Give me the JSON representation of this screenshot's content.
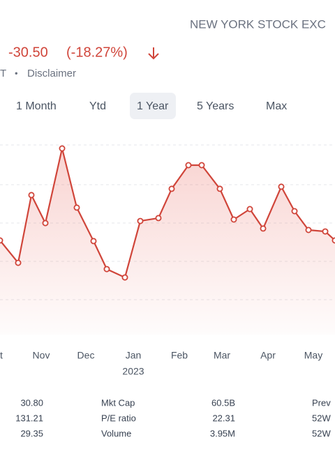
{
  "header": {
    "exchange": "NEW YORK STOCK EXC",
    "change": "-30.50",
    "change_percent": "(-18.27%)",
    "time_fragment": "T",
    "separator": "•",
    "disclaimer": "Disclaimer"
  },
  "tabs": [
    "1 Month",
    "Ytd",
    "1 Year",
    "5 Years",
    "Max"
  ],
  "selected_tab": "1 Year",
  "chart_data": {
    "type": "line",
    "color": "#d0453a",
    "x": [
      0,
      26,
      45,
      65,
      89,
      110,
      134,
      153,
      179,
      201,
      227,
      246,
      270,
      289,
      315,
      335,
      358,
      377,
      403,
      422,
      442,
      466,
      480
    ],
    "values": [
      45,
      34.3,
      66.7,
      53.3,
      89,
      60.7,
      44.7,
      31.3,
      27.3,
      54.3,
      55.7,
      69.7,
      81,
      81,
      69.7,
      55,
      60,
      50.7,
      70.7,
      59,
      50,
      49.3,
      45
    ],
    "xlim": [
      0,
      480
    ],
    "ylim": [
      0,
      100
    ],
    "xticks": [
      {
        "value": 2,
        "label": "t"
      },
      {
        "value": 59,
        "label": "Nov"
      },
      {
        "value": 123,
        "label": "Dec"
      },
      {
        "value": 191,
        "label": "Jan"
      },
      {
        "value": 257,
        "label": "Feb"
      },
      {
        "value": 318,
        "label": "Mar"
      },
      {
        "value": 384,
        "label": "Apr"
      },
      {
        "value": 449,
        "label": "May"
      }
    ],
    "year_label": "2023"
  },
  "stats": {
    "left": [
      "30.80",
      "131.21",
      "29.35"
    ],
    "middle": [
      {
        "label": "Mkt Cap",
        "value": "60.5B"
      },
      {
        "label": "P/E ratio",
        "value": "22.31"
      },
      {
        "label": "Volume",
        "value": "3.95M"
      }
    ],
    "right": [
      "Prev",
      "52W",
      "52W"
    ]
  }
}
